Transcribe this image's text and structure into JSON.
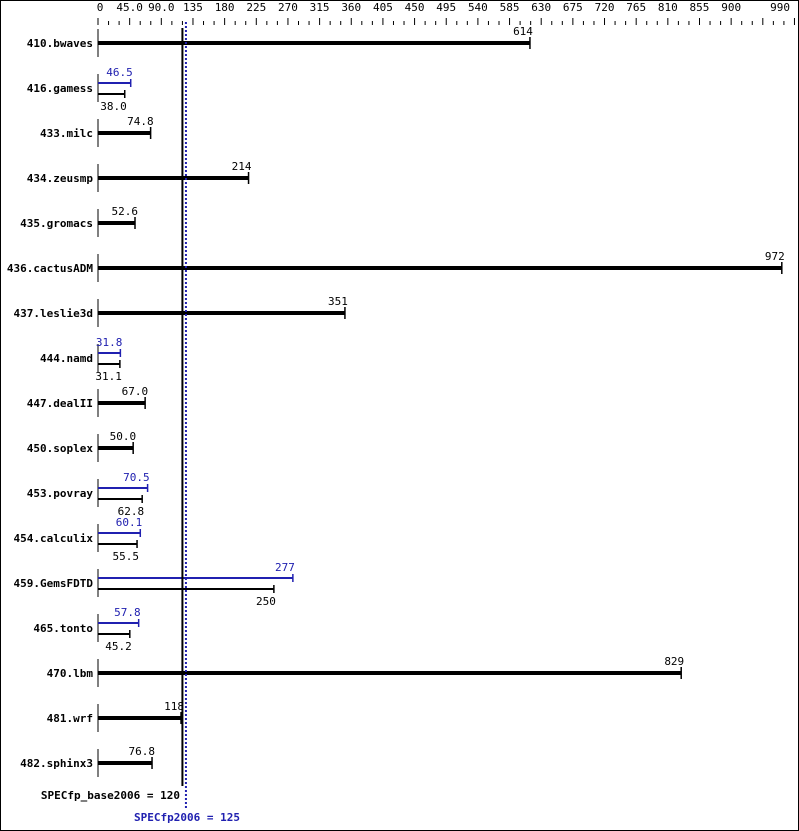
{
  "chart_data": {
    "type": "bar",
    "orientation": "horizontal",
    "xlim": [
      0,
      990
    ],
    "tick_labels": [
      "0",
      "45.0",
      "90.0",
      "135",
      "180",
      "225",
      "270",
      "315",
      "360",
      "405",
      "450",
      "495",
      "540",
      "585",
      "630",
      "675",
      "720",
      "765",
      "810",
      "855",
      "900",
      "990"
    ],
    "tick_values": [
      0,
      45,
      90,
      135,
      180,
      225,
      270,
      315,
      360,
      405,
      450,
      495,
      540,
      585,
      630,
      675,
      720,
      765,
      810,
      855,
      900,
      990
    ],
    "colors": {
      "base": "#000000",
      "peak": "#2020b0"
    },
    "benchmarks": [
      {
        "name": "410.bwaves",
        "base": 614,
        "peak": null,
        "label": "614"
      },
      {
        "name": "416.gamess",
        "base": 38.0,
        "peak": 46.5,
        "label": "38.0",
        "peak_label": "46.5"
      },
      {
        "name": "433.milc",
        "base": 74.8,
        "peak": null,
        "label": "74.8"
      },
      {
        "name": "434.zeusmp",
        "base": 214,
        "peak": null,
        "label": "214"
      },
      {
        "name": "435.gromacs",
        "base": 52.6,
        "peak": null,
        "label": "52.6"
      },
      {
        "name": "436.cactusADM",
        "base": 972,
        "peak": null,
        "label": "972"
      },
      {
        "name": "437.leslie3d",
        "base": 351,
        "peak": null,
        "label": "351"
      },
      {
        "name": "444.namd",
        "base": 31.1,
        "peak": 31.8,
        "label": "31.1",
        "peak_label": "31.8"
      },
      {
        "name": "447.dealII",
        "base": 67.0,
        "peak": null,
        "label": "67.0"
      },
      {
        "name": "450.soplex",
        "base": 50.0,
        "peak": null,
        "label": "50.0"
      },
      {
        "name": "453.povray",
        "base": 62.8,
        "peak": 70.5,
        "label": "62.8",
        "peak_label": "70.5"
      },
      {
        "name": "454.calculix",
        "base": 55.5,
        "peak": 60.1,
        "label": "55.5",
        "peak_label": "60.1"
      },
      {
        "name": "459.GemsFDTD",
        "base": 250,
        "peak": 277,
        "label": "250",
        "peak_label": "277"
      },
      {
        "name": "465.tonto",
        "base": 45.2,
        "peak": 57.8,
        "label": "45.2",
        "peak_label": "57.8"
      },
      {
        "name": "470.lbm",
        "base": 829,
        "peak": null,
        "label": "829"
      },
      {
        "name": "481.wrf",
        "base": 118,
        "peak": null,
        "label": "118"
      },
      {
        "name": "482.sphinx3",
        "base": 76.8,
        "peak": null,
        "label": "76.8"
      }
    ],
    "summary": {
      "base_value": 120,
      "base_label": "SPECfp_base2006 = 120",
      "peak_value": 125,
      "peak_label": "SPECfp2006 = 125"
    }
  }
}
